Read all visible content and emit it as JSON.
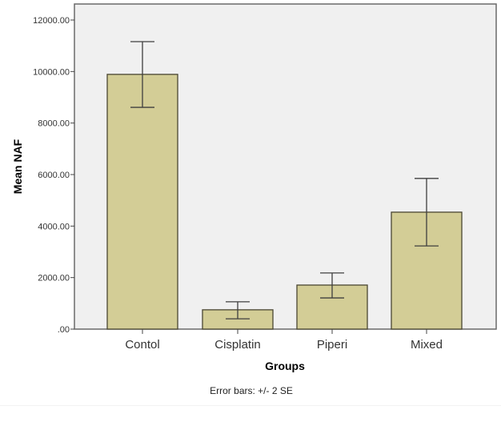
{
  "chart_data": {
    "type": "bar",
    "title": "",
    "xlabel": "Groups",
    "ylabel": "Mean NAF",
    "categories": [
      "Contol",
      "Cisplatin",
      "Piperi",
      "Mixed"
    ],
    "values": [
      9890,
      750,
      1710,
      4540
    ],
    "error_bars": {
      "label": "Error bars: +/- 2 SE",
      "upper": [
        11160,
        1060,
        2180,
        5850
      ],
      "lower": [
        8610,
        400,
        1210,
        3230
      ]
    },
    "yticks": [
      0,
      2000,
      4000,
      6000,
      8000,
      10000,
      12000
    ],
    "ytick_labels": [
      ".00",
      "2000.00",
      "4000.00",
      "6000.00",
      "8000.00",
      "10000.00",
      "12000.00"
    ],
    "ylim": [
      0,
      12600
    ],
    "grid": false,
    "legend": null,
    "colors": {
      "bar_fill": "#d3cd96",
      "bar_stroke": "#4a4632",
      "plot_background": "#f0f0f0",
      "plot_border": "#6a6a6a",
      "error_bar": "#3f3f3f"
    }
  },
  "footnote": "Error bars: +/- 2 SE"
}
